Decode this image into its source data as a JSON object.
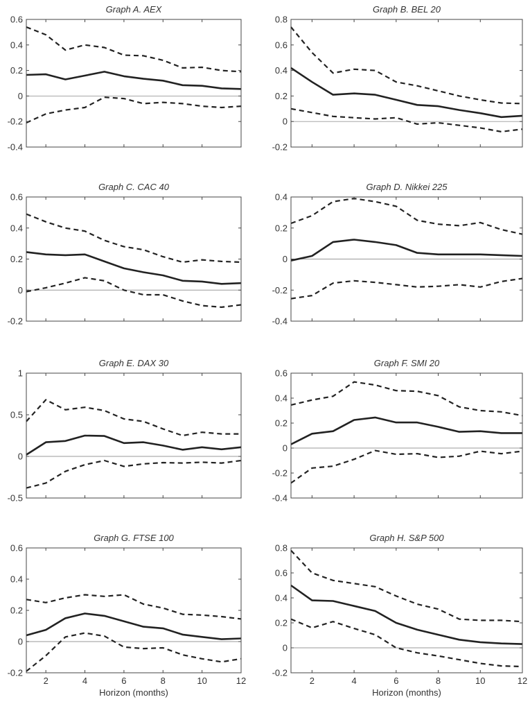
{
  "figure": {
    "xlabel": "Horizon (months)"
  },
  "chart_data": [
    {
      "type": "line",
      "title": "Graph A. AEX",
      "x": [
        1,
        2,
        3,
        4,
        5,
        6,
        7,
        8,
        9,
        10,
        11,
        12
      ],
      "xlim": [
        1,
        12
      ],
      "xticks": [
        2,
        4,
        6,
        8,
        10,
        12
      ],
      "ylim": [
        -0.4,
        0.6
      ],
      "yticks": [
        -0.4,
        -0.2,
        0,
        0.2,
        0.4,
        0.6
      ],
      "ytick_labels": [
        "-0.4",
        "-0.2",
        "0",
        "0.2",
        "0.4",
        "0.6"
      ],
      "grid": false,
      "series": [
        {
          "style": "solid",
          "values": [
            0.165,
            0.17,
            0.13,
            0.16,
            0.19,
            0.155,
            0.135,
            0.12,
            0.085,
            0.08,
            0.06,
            0.055
          ]
        },
        {
          "style": "dashed",
          "values": [
            0.54,
            0.48,
            0.36,
            0.4,
            0.38,
            0.32,
            0.315,
            0.28,
            0.22,
            0.225,
            0.2,
            0.19
          ]
        },
        {
          "style": "dashed",
          "values": [
            -0.21,
            -0.14,
            -0.11,
            -0.09,
            -0.01,
            -0.02,
            -0.06,
            -0.05,
            -0.06,
            -0.08,
            -0.09,
            -0.08
          ]
        }
      ]
    },
    {
      "type": "line",
      "title": "Graph B. BEL 20",
      "x": [
        1,
        2,
        3,
        4,
        5,
        6,
        7,
        8,
        9,
        10,
        11,
        12
      ],
      "xlim": [
        1,
        12
      ],
      "xticks": [
        2,
        4,
        6,
        8,
        10,
        12
      ],
      "ylim": [
        -0.2,
        0.8
      ],
      "yticks": [
        -0.2,
        0,
        0.2,
        0.4,
        0.6,
        0.8
      ],
      "ytick_labels": [
        "-0.2",
        "0",
        "0.2",
        "0.4",
        "0.6",
        "0.8"
      ],
      "grid": false,
      "series": [
        {
          "style": "solid",
          "values": [
            0.42,
            0.31,
            0.21,
            0.22,
            0.21,
            0.17,
            0.13,
            0.12,
            0.09,
            0.065,
            0.035,
            0.045
          ]
        },
        {
          "style": "dashed",
          "values": [
            0.74,
            0.54,
            0.38,
            0.41,
            0.4,
            0.31,
            0.28,
            0.24,
            0.2,
            0.17,
            0.145,
            0.14
          ]
        },
        {
          "style": "dashed",
          "values": [
            0.1,
            0.07,
            0.04,
            0.03,
            0.02,
            0.03,
            -0.02,
            -0.01,
            -0.03,
            -0.05,
            -0.08,
            -0.06
          ]
        }
      ]
    },
    {
      "type": "line",
      "title": "Graph C. CAC 40",
      "x": [
        1,
        2,
        3,
        4,
        5,
        6,
        7,
        8,
        9,
        10,
        11,
        12
      ],
      "xlim": [
        1,
        12
      ],
      "xticks": [
        2,
        4,
        6,
        8,
        10,
        12
      ],
      "ylim": [
        -0.2,
        0.6
      ],
      "yticks": [
        -0.2,
        0,
        0.2,
        0.4,
        0.6
      ],
      "ytick_labels": [
        "-0.2",
        "0",
        "0.2",
        "0.4",
        "0.6"
      ],
      "grid": false,
      "series": [
        {
          "style": "solid",
          "values": [
            0.245,
            0.23,
            0.225,
            0.23,
            0.185,
            0.14,
            0.115,
            0.095,
            0.06,
            0.055,
            0.04,
            0.045
          ]
        },
        {
          "style": "dashed",
          "values": [
            0.49,
            0.44,
            0.4,
            0.38,
            0.32,
            0.28,
            0.26,
            0.215,
            0.18,
            0.195,
            0.185,
            0.18
          ]
        },
        {
          "style": "dashed",
          "values": [
            -0.01,
            0.015,
            0.045,
            0.08,
            0.06,
            0.0,
            -0.03,
            -0.03,
            -0.07,
            -0.1,
            -0.11,
            -0.095
          ]
        }
      ]
    },
    {
      "type": "line",
      "title": "Graph D. Nikkei 225",
      "x": [
        1,
        2,
        3,
        4,
        5,
        6,
        7,
        8,
        9,
        10,
        11,
        12
      ],
      "xlim": [
        1,
        12
      ],
      "xticks": [
        2,
        4,
        6,
        8,
        10,
        12
      ],
      "ylim": [
        -0.4,
        0.4
      ],
      "yticks": [
        -0.4,
        -0.2,
        0,
        0.2,
        0.4
      ],
      "ytick_labels": [
        "-0.4",
        "-0.2",
        "0",
        "0.2",
        "0.4"
      ],
      "grid": false,
      "series": [
        {
          "style": "solid",
          "values": [
            -0.01,
            0.02,
            0.11,
            0.125,
            0.11,
            0.09,
            0.04,
            0.03,
            0.03,
            0.03,
            0.025,
            0.02
          ]
        },
        {
          "style": "dashed",
          "values": [
            0.23,
            0.28,
            0.37,
            0.39,
            0.37,
            0.34,
            0.25,
            0.225,
            0.215,
            0.235,
            0.19,
            0.16
          ]
        },
        {
          "style": "dashed",
          "values": [
            -0.255,
            -0.235,
            -0.155,
            -0.14,
            -0.15,
            -0.165,
            -0.18,
            -0.175,
            -0.165,
            -0.18,
            -0.145,
            -0.125
          ]
        }
      ]
    },
    {
      "type": "line",
      "title": "Graph E. DAX 30",
      "x": [
        1,
        2,
        3,
        4,
        5,
        6,
        7,
        8,
        9,
        10,
        11,
        12
      ],
      "xlim": [
        1,
        12
      ],
      "xticks": [
        2,
        4,
        6,
        8,
        10,
        12
      ],
      "ylim": [
        -0.5,
        1
      ],
      "yticks": [
        -0.5,
        0,
        0.5,
        1
      ],
      "ytick_labels": [
        "-0.5",
        "0",
        "0.5",
        "1"
      ],
      "grid": false,
      "series": [
        {
          "style": "solid",
          "values": [
            0.02,
            0.17,
            0.185,
            0.25,
            0.245,
            0.16,
            0.17,
            0.13,
            0.08,
            0.11,
            0.085,
            0.11
          ]
        },
        {
          "style": "dashed",
          "values": [
            0.42,
            0.68,
            0.56,
            0.59,
            0.55,
            0.45,
            0.42,
            0.33,
            0.25,
            0.29,
            0.27,
            0.27
          ]
        },
        {
          "style": "dashed",
          "values": [
            -0.38,
            -0.32,
            -0.18,
            -0.1,
            -0.05,
            -0.12,
            -0.09,
            -0.075,
            -0.08,
            -0.07,
            -0.08,
            -0.05
          ]
        }
      ]
    },
    {
      "type": "line",
      "title": "Graph F. SMI 20",
      "x": [
        1,
        2,
        3,
        4,
        5,
        6,
        7,
        8,
        9,
        10,
        11,
        12
      ],
      "xlim": [
        1,
        12
      ],
      "xticks": [
        2,
        4,
        6,
        8,
        10,
        12
      ],
      "ylim": [
        -0.4,
        0.6
      ],
      "yticks": [
        -0.4,
        -0.2,
        0,
        0.2,
        0.4,
        0.6
      ],
      "ytick_labels": [
        "-0.4",
        "-0.2",
        "0",
        "0.2",
        "0.4",
        "0.6"
      ],
      "grid": false,
      "series": [
        {
          "style": "solid",
          "values": [
            0.03,
            0.115,
            0.135,
            0.225,
            0.245,
            0.205,
            0.205,
            0.17,
            0.13,
            0.135,
            0.12,
            0.12
          ]
        },
        {
          "style": "dashed",
          "values": [
            0.345,
            0.385,
            0.415,
            0.53,
            0.505,
            0.46,
            0.455,
            0.42,
            0.33,
            0.3,
            0.29,
            0.26
          ]
        },
        {
          "style": "dashed",
          "values": [
            -0.28,
            -0.16,
            -0.145,
            -0.09,
            -0.02,
            -0.05,
            -0.045,
            -0.075,
            -0.065,
            -0.025,
            -0.045,
            -0.025
          ]
        }
      ]
    },
    {
      "type": "line",
      "title": "Graph G. FTSE 100",
      "x": [
        1,
        2,
        3,
        4,
        5,
        6,
        7,
        8,
        9,
        10,
        11,
        12
      ],
      "xlim": [
        1,
        12
      ],
      "xticks": [
        2,
        4,
        6,
        8,
        10,
        12
      ],
      "xlabel": "Horizon (months)",
      "ylim": [
        -0.2,
        0.6
      ],
      "yticks": [
        -0.2,
        0,
        0.2,
        0.4,
        0.6
      ],
      "ytick_labels": [
        "-0.2",
        "0",
        "0.2",
        "0.4",
        "0.6"
      ],
      "grid": false,
      "series": [
        {
          "style": "solid",
          "values": [
            0.04,
            0.075,
            0.15,
            0.18,
            0.165,
            0.13,
            0.095,
            0.085,
            0.045,
            0.03,
            0.015,
            0.02
          ]
        },
        {
          "style": "dashed",
          "values": [
            0.27,
            0.25,
            0.28,
            0.3,
            0.29,
            0.3,
            0.24,
            0.215,
            0.175,
            0.17,
            0.16,
            0.145
          ]
        },
        {
          "style": "dashed",
          "values": [
            -0.19,
            -0.09,
            0.03,
            0.055,
            0.035,
            -0.035,
            -0.045,
            -0.04,
            -0.085,
            -0.11,
            -0.13,
            -0.11
          ]
        }
      ]
    },
    {
      "type": "line",
      "title": "Graph H. S&P 500",
      "x": [
        1,
        2,
        3,
        4,
        5,
        6,
        7,
        8,
        9,
        10,
        11,
        12
      ],
      "xlim": [
        1,
        12
      ],
      "xticks": [
        2,
        4,
        6,
        8,
        10,
        12
      ],
      "xlabel": "Horizon (months)",
      "ylim": [
        -0.2,
        0.8
      ],
      "yticks": [
        -0.2,
        0,
        0.2,
        0.4,
        0.6,
        0.8
      ],
      "ytick_labels": [
        "-0.2",
        "0",
        "0.2",
        "0.4",
        "0.6",
        "0.8"
      ],
      "grid": false,
      "series": [
        {
          "style": "solid",
          "values": [
            0.5,
            0.38,
            0.375,
            0.335,
            0.295,
            0.2,
            0.145,
            0.105,
            0.065,
            0.045,
            0.035,
            0.03
          ]
        },
        {
          "style": "dashed",
          "values": [
            0.78,
            0.6,
            0.54,
            0.515,
            0.49,
            0.415,
            0.35,
            0.31,
            0.23,
            0.22,
            0.22,
            0.21
          ]
        },
        {
          "style": "dashed",
          "values": [
            0.23,
            0.16,
            0.21,
            0.155,
            0.105,
            0.0,
            -0.04,
            -0.065,
            -0.095,
            -0.125,
            -0.145,
            -0.15
          ]
        }
      ]
    }
  ]
}
